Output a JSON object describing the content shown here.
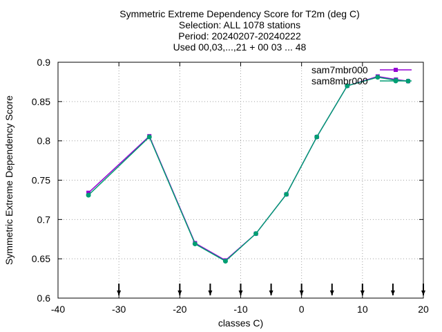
{
  "chart_data": {
    "type": "line",
    "title_lines": [
      "Symmetric Extreme Dependency Score  for T2m (deg C)",
      "Selection: ALL   1078 stations",
      "Period: 20240207-20240222",
      "Used 00,03,...,21 + 00 03 ... 48"
    ],
    "xlabel": "classes C)",
    "ylabel": "Symmetric Extreme Dependency Score",
    "xlim": [
      -40,
      20
    ],
    "ylim": [
      0.6,
      0.9
    ],
    "xticks": [
      -40,
      -30,
      -20,
      -10,
      0,
      10,
      20
    ],
    "xtick_labels": [
      "-40",
      "-30",
      "-20",
      "-10",
      "0",
      "10",
      "20"
    ],
    "yticks": [
      0.6,
      0.65,
      0.7,
      0.75,
      0.8,
      0.85,
      0.9
    ],
    "ytick_labels": [
      "0.6",
      "0.65",
      "0.7",
      "0.75",
      "0.8",
      "0.85",
      "0.9"
    ],
    "grid": true,
    "legend_position": "top-right",
    "class_markers_x": [
      -30,
      -20,
      -15,
      -10,
      -5,
      0,
      5,
      10,
      15,
      20
    ],
    "series": [
      {
        "name": "sam7mbr000",
        "color": "#9400d3",
        "x": [
          -35,
          -25,
          -17.5,
          -12.5,
          -7.5,
          -2.5,
          2.5,
          7.5,
          12.5,
          15.5,
          17.5
        ],
        "y": [
          0.734,
          0.806,
          0.67,
          0.648,
          0.682,
          0.732,
          0.805,
          0.87,
          0.882,
          0.878,
          0.876
        ]
      },
      {
        "name": "sam8mbr000",
        "color": "#009e73",
        "x": [
          -35,
          -25,
          -17.5,
          -12.5,
          -7.5,
          -2.5,
          2.5,
          7.5,
          12.5,
          15.5,
          17.5
        ],
        "y": [
          0.731,
          0.805,
          0.669,
          0.647,
          0.682,
          0.732,
          0.805,
          0.87,
          0.881,
          0.877,
          0.876
        ]
      }
    ]
  }
}
